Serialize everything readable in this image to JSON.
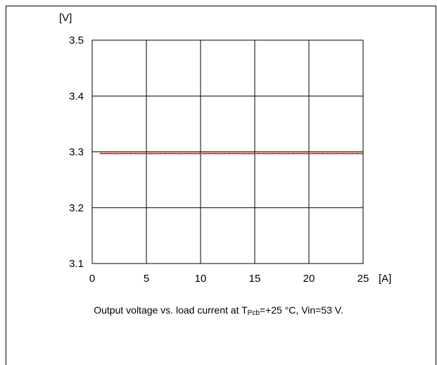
{
  "chart_data": {
    "type": "line",
    "x_unit": "[A]",
    "y_unit": "[V]",
    "xlim": [
      0,
      25
    ],
    "ylim": [
      3.1,
      3.5
    ],
    "x_ticks": [
      "0",
      "5",
      "10",
      "15",
      "20",
      "25"
    ],
    "y_ticks": [
      "3.5",
      "3.4",
      "3.3",
      "3.2",
      "3.1"
    ],
    "grid": true,
    "series": [
      {
        "style": "solid",
        "color": "#e8473a",
        "x": [
          0.7,
          25
        ],
        "y": [
          3.297,
          3.297
        ]
      },
      {
        "style": "dashed",
        "color": "#555555",
        "x": [
          0.7,
          25
        ],
        "y": [
          3.297,
          3.297
        ]
      }
    ],
    "caption": {
      "prefix": "Output voltage vs. load current at T",
      "subscript": "Pcb",
      "suffix": "=+25 °C, Vin=53 V."
    }
  }
}
